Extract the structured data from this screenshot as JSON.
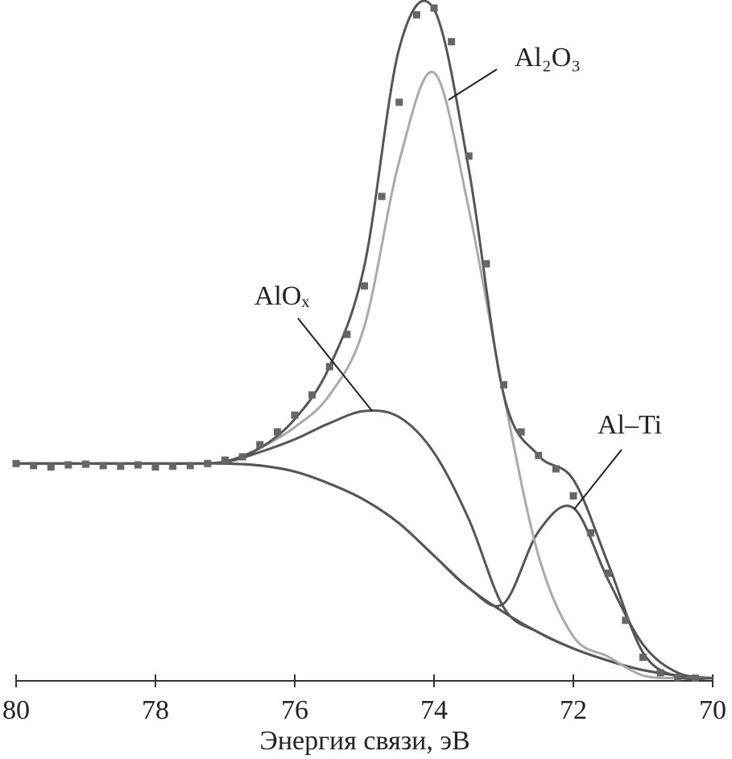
{
  "chart_data": {
    "type": "line",
    "x_label": "Энергия связи, эВ",
    "xlim": [
      80,
      70
    ],
    "xticks": [
      80,
      78,
      76,
      74,
      72,
      70
    ],
    "ylim": [
      0,
      100
    ],
    "x": [
      80,
      79.5,
      79,
      78.5,
      78,
      77.5,
      77,
      76.5,
      76,
      75.5,
      75,
      74.5,
      74,
      73.5,
      73,
      72.5,
      72,
      71.5,
      71,
      70.5,
      70
    ],
    "series": [
      {
        "color": "#555555",
        "values": [
          32.3,
          32.3,
          32.3,
          32.3,
          32.3,
          32.3,
          32.3,
          32.0,
          31.1,
          29.3,
          26.9,
          23.4,
          18.6,
          13.8,
          10.2,
          7.2,
          4.8,
          3.0,
          1.6,
          0.8,
          0.4
        ]
      },
      {
        "name": "AlOₓ",
        "color": "#555555",
        "values": [
          32.3,
          32.3,
          32.3,
          32.3,
          32.3,
          32.3,
          32.5,
          34.0,
          35.9,
          38.3,
          40.1,
          39.2,
          33.9,
          24.0,
          10.9,
          7.2,
          4.8,
          3.0,
          1.6,
          0.8,
          0.4
        ]
      },
      {
        "name": "Al–Ti",
        "color": "#555555",
        "values": [
          32.3,
          32.3,
          32.3,
          32.3,
          32.3,
          32.3,
          32.3,
          32.0,
          31.1,
          29.3,
          26.9,
          23.4,
          18.6,
          13.8,
          11.5,
          22.2,
          25.7,
          15.0,
          5.4,
          1.2,
          0.4
        ]
      },
      {
        "name": "Al₂O₃",
        "color": "#aaaaaa",
        "values": [
          32.3,
          32.3,
          32.3,
          32.3,
          32.3,
          32.3,
          32.6,
          34.6,
          37.7,
          42.5,
          52.7,
          77.2,
          90.4,
          70.1,
          42.5,
          18.6,
          6.6,
          3.6,
          0.8,
          0.4,
          0.4
        ]
      },
      {
        "color": "#555555",
        "values": [
          32.3,
          32.3,
          32.3,
          32.3,
          32.3,
          32.3,
          32.6,
          34.6,
          38.9,
          46.7,
          61.7,
          94.0,
          99.8,
          76.0,
          42.5,
          33.5,
          29.9,
          17.4,
          4.2,
          0.6,
          0.4
        ]
      }
    ],
    "markers": {
      "color": "#666666",
      "x": [
        80,
        79.75,
        79.5,
        79.25,
        79,
        78.75,
        78.5,
        78.25,
        78,
        77.75,
        77.5,
        77.25,
        77,
        76.75,
        76.5,
        76.25,
        76,
        75.75,
        75.5,
        75.25,
        75,
        74.75,
        74.5,
        74.25,
        74,
        73.75,
        73.5,
        73.25,
        73,
        72.75,
        72.5,
        72.25,
        72,
        71.75,
        71.5,
        71.25,
        71,
        70.75,
        70.5,
        70.25
      ],
      "values": [
        32.3,
        32.0,
        31.8,
        32.1,
        32.2,
        32.0,
        31.9,
        32.1,
        31.8,
        31.9,
        32.0,
        32.3,
        32.8,
        33.3,
        35.1,
        37.0,
        39.5,
        42.5,
        46.7,
        51.5,
        58.7,
        72.0,
        86.0,
        99.0,
        100.0,
        95.0,
        78.0,
        62.0,
        44.0,
        37.0,
        33.5,
        31.5,
        27.5,
        22.0,
        16.0,
        9.0,
        3.5,
        1.2,
        0.5,
        0.4
      ]
    }
  }
}
